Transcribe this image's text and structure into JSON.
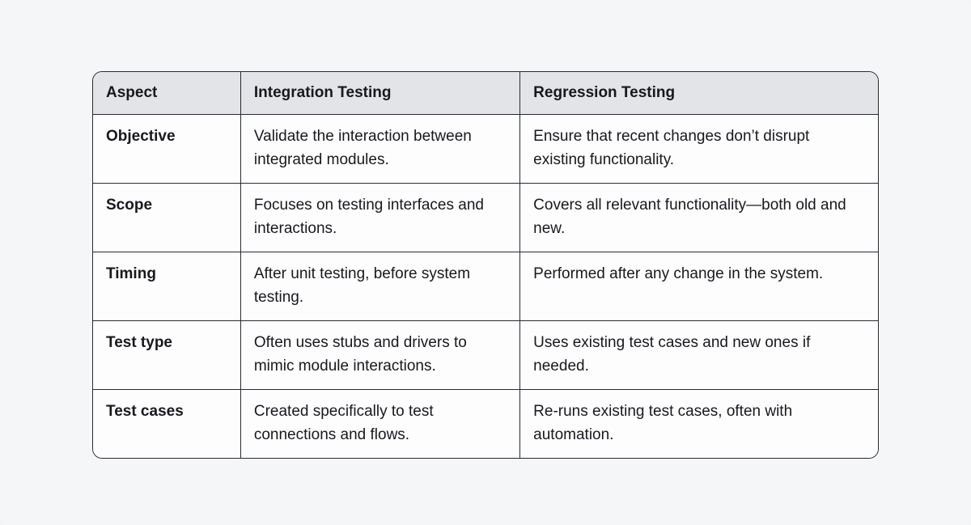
{
  "table": {
    "columns": [
      "Aspect",
      "Integration Testing",
      "Regression Testing"
    ],
    "rows": [
      {
        "aspect": "Objective",
        "integration": "Validate the interaction between integrated modules.",
        "regression": "Ensure that recent changes don’t disrupt existing functionality."
      },
      {
        "aspect": "Scope",
        "integration": "Focuses on testing interfaces and interactions.",
        "regression": "Covers all relevant functionality—both old and new."
      },
      {
        "aspect": "Timing",
        "integration": "After unit testing, before system testing.",
        "regression": "Performed after any change in the system."
      },
      {
        "aspect": "Test type",
        "integration": "Often uses stubs and drivers to mimic module interactions.",
        "regression": "Uses existing test cases and new ones if needed."
      },
      {
        "aspect": "Test cases",
        "integration": "Created specifically to test connections and flows.",
        "regression": "Re-runs existing test cases, often with automation."
      }
    ],
    "colors": {
      "page_background": "#f4f6f8",
      "header_background": "#e2e4e8",
      "cell_background": "#fdfdfe",
      "border": "#272b31",
      "text": "#17191d"
    }
  }
}
